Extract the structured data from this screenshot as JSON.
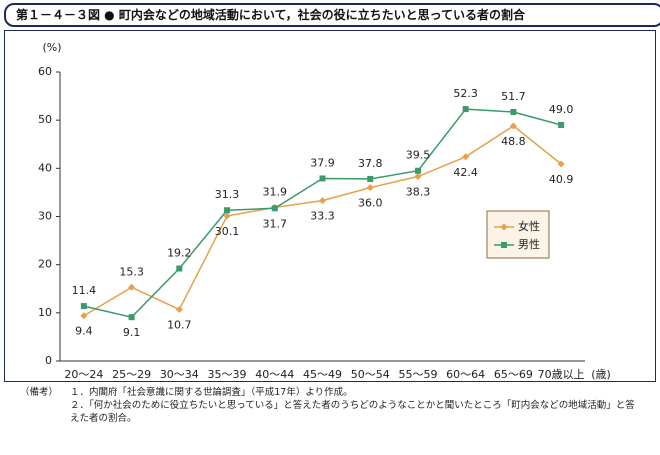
{
  "chart_data": {
    "type": "line",
    "title": "第１－４－３図 ● 町内会などの地域活動において，社会の役に立ちたいと思っている者の割合",
    "y_label": "(%)",
    "x_label": "(歳)",
    "categories": [
      "20～24",
      "25～29",
      "30～34",
      "35～39",
      "40～44",
      "45～49",
      "50～54",
      "55～59",
      "60～64",
      "65～69",
      "70歳以上"
    ],
    "series": [
      {
        "name": "女性",
        "color": "#e8a048",
        "values": [
          9.4,
          15.3,
          10.7,
          30.1,
          31.9,
          33.3,
          36.0,
          38.3,
          42.4,
          48.8,
          40.9
        ],
        "value_labels": [
          "9.4",
          "15.3",
          "10.7",
          "30.1",
          "31.9",
          "33.3",
          "36.0",
          "38.3",
          "42.4",
          "48.8",
          "40.9"
        ]
      },
      {
        "name": "男性",
        "color": "#3a9a6a",
        "values": [
          11.4,
          9.1,
          19.2,
          31.3,
          31.7,
          37.9,
          37.8,
          39.5,
          52.3,
          51.7,
          49.0
        ],
        "value_labels": [
          "11.4",
          "9.1",
          "19.2",
          "31.3",
          "31.7",
          "37.9",
          "37.8",
          "39.5",
          "52.3",
          "51.7",
          "49.0"
        ]
      }
    ],
    "ylim": [
      0,
      60
    ],
    "yticks": [
      0,
      10,
      20,
      30,
      40,
      50,
      60
    ],
    "grid": false,
    "legend": "right"
  },
  "notes": {
    "label": "（備考）",
    "items": [
      "１．内閣府「社会意識に関する世論調査」（平成17年）より作成。",
      "２．「何か社会のために役立ちたいと思っている」と答えた者のうちどのようなことかと聞いたところ「町内会などの地域活動」と答えた者の割合。"
    ]
  }
}
